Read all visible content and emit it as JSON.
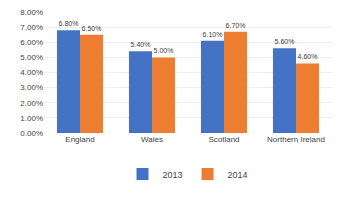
{
  "chart_data": {
    "type": "bar",
    "categories": [
      "England",
      "Wales",
      "Scotland",
      "Northern Ireland"
    ],
    "series": [
      {
        "name": "2013",
        "color": "#4472C4",
        "values": [
          6.8,
          5.4,
          6.1,
          5.6
        ],
        "value_labels": [
          "6.80%",
          "5.40%",
          "6.10%",
          "5.60%"
        ]
      },
      {
        "name": "2014",
        "color": "#ED7D31",
        "values": [
          6.5,
          5.0,
          6.7,
          4.6
        ],
        "value_labels": [
          "6.50%",
          "5.00%",
          "6.70%",
          "4.60%"
        ]
      }
    ],
    "ylim": [
      0.0,
      8.0
    ],
    "yticks": [
      {
        "value": 0.0,
        "label": "0.00%"
      },
      {
        "value": 1.0,
        "label": "1.00%"
      },
      {
        "value": 2.0,
        "label": "2.00%"
      },
      {
        "value": 3.0,
        "label": "3.00%"
      },
      {
        "value": 4.0,
        "label": "4.00%"
      },
      {
        "value": 5.0,
        "label": "5.00%"
      },
      {
        "value": 6.0,
        "label": "6.00%"
      },
      {
        "value": 7.0,
        "label": "7.00%"
      },
      {
        "value": 8.0,
        "label": "8.00%"
      }
    ],
    "grid": true,
    "legend": "bottom",
    "data_labels": true
  }
}
